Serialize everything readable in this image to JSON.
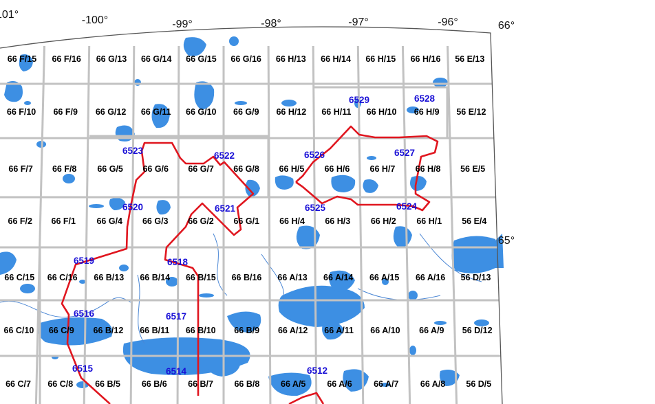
{
  "longitude_labels": [
    "101°",
    "-100°",
    "-99°",
    "-98°",
    "-97°",
    "-96°"
  ],
  "latitude_labels": [
    "66°",
    "65°"
  ],
  "nts_rows": [
    [
      "66 F/15",
      "66 F/16",
      "66 G/13",
      "66 G/14",
      "66 G/15",
      "66 G/16",
      "66 H/13",
      "66 H/14",
      "66 H/15",
      "66 H/16",
      "56 E/13"
    ],
    [
      "66 F/10",
      "66 F/9",
      "66 G/12",
      "66 G/11",
      "66 G/10",
      "66 G/9",
      "66 H/12",
      "66 H/11",
      "66 H/10",
      "66 H/9",
      "56 E/12"
    ],
    [
      "66 F/7",
      "66 F/8",
      "66 G/5",
      "66 G/6",
      "66 G/7",
      "66 G/8",
      "66 H/5",
      "66 H/6",
      "66 H/7",
      "66 H/8",
      "56 E/5"
    ],
    [
      "66 F/2",
      "66 F/1",
      "66 G/4",
      "66 G/3",
      "66 G/2",
      "66 G/1",
      "66 H/4",
      "66 H/3",
      "66 H/2",
      "66 H/1",
      "56 E/4"
    ],
    [
      "66 C/15",
      "66 C/16",
      "66 B/13",
      "66 B/14",
      "66 B/15",
      "66 B/16",
      "66 A/13",
      "66 A/14",
      "66 A/15",
      "66 A/16",
      "56 D/13"
    ],
    [
      "66 C/10",
      "66 C/9",
      "66 B/12",
      "66 B/11",
      "66 B/10",
      "66 B/9",
      "66 A/12",
      "66 A/11",
      "66 A/10",
      "66 A/9",
      "56 D/12"
    ],
    [
      "66 C/7",
      "66 C/8",
      "66 B/5",
      "66 B/6",
      "66 B/7",
      "66 B/8",
      "66 A/5",
      "66 A/6",
      "66 A/7",
      "66 A/8",
      "56 D/5"
    ]
  ],
  "zone_labels": [
    "6523",
    "6522",
    "6526",
    "6529",
    "6528",
    "6527",
    "6520",
    "6521",
    "6525",
    "6524",
    "6519",
    "6518",
    "6516",
    "6517",
    "6515",
    "6514",
    "6512"
  ],
  "colors": {
    "water": "#3d8fe3",
    "grid": "#c2c2c2",
    "border": "#555555",
    "route": "#e0161f",
    "zone_text": "#1a10d6",
    "tile_text": "#000000",
    "river": "#4a86d4"
  }
}
